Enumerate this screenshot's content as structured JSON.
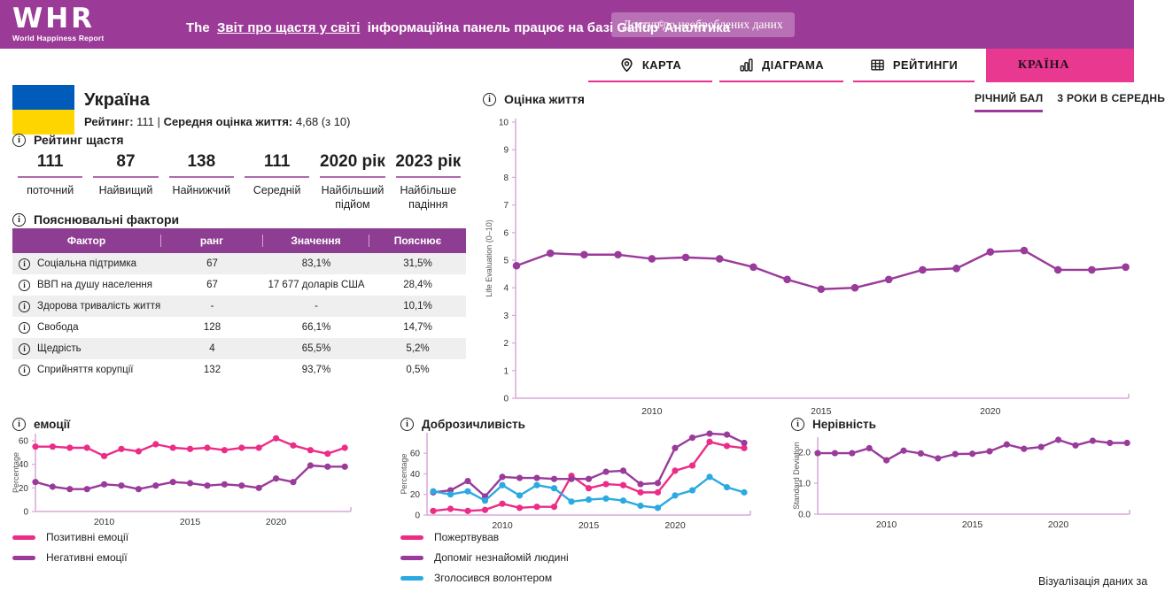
{
  "header": {
    "logo": {
      "acronym": "WHR",
      "name": "World Happiness Report"
    },
    "title": {
      "prefix": "The",
      "link": "Звіт про щастя у світі",
      "middle": "інформаційна панель працює на базі Gallup",
      "superscript": "©",
      "suffix": "Аналітика"
    },
    "raw_data_button": "Доступ до необроблених даних"
  },
  "nav": {
    "tabs": [
      {
        "label": "КАРТА",
        "icon": "map-pin-icon",
        "active": false
      },
      {
        "label": "ДІАГРАМА",
        "icon": "bar-chart-icon",
        "active": false
      },
      {
        "label": "РЕЙТИНГИ",
        "icon": "table-icon",
        "active": false
      },
      {
        "label": "КРАЇНА",
        "icon": "",
        "active": true
      }
    ]
  },
  "country": {
    "name": "Україна",
    "flag_colors": [
      "#005BBB",
      "#FFD500"
    ],
    "rank_label": "Рейтинг:",
    "rank_value": "111",
    "divider": "|",
    "life_label": "Середня оцінка життя:",
    "life_value": "4,68 (з 10)"
  },
  "happiness_rating": {
    "title": "Рейтинг щастя",
    "stats": [
      {
        "value": "111",
        "label": "поточний"
      },
      {
        "value": "87",
        "label": "Найвищий"
      },
      {
        "value": "138",
        "label": "Найнижчий"
      },
      {
        "value": "111",
        "label": "Середній"
      },
      {
        "value": "2020 рік",
        "label": "Найбільший підйом"
      },
      {
        "value": "2023 рік",
        "label": "Найбільше падіння"
      }
    ]
  },
  "factors": {
    "title": "Пояснювальні фактори",
    "columns": [
      "Фактор",
      "ранг",
      "Значення",
      "Пояснює"
    ],
    "rows": [
      {
        "factor": "Соціальна підтримка",
        "rank": "67",
        "value": "83,1%",
        "explains": "31,5%"
      },
      {
        "factor": "ВВП на душу населення",
        "rank": "67",
        "value": "17 677 доларів США",
        "explains": "28,4%"
      },
      {
        "factor": "Здорова тривалість життя",
        "rank": "-",
        "value": "-",
        "explains": "10,1%"
      },
      {
        "factor": "Свобода",
        "rank": "128",
        "value": "66,1%",
        "explains": "14,7%"
      },
      {
        "factor": "Щедрість",
        "rank": "4",
        "value": "65,5%",
        "explains": "5,2%"
      },
      {
        "factor": "Сприйняття корупції",
        "rank": "132",
        "value": "93,7%",
        "explains": "0,5%"
      }
    ]
  },
  "life_chart_tabs": [
    {
      "label": "РІЧНИЙ БАЛ",
      "active": true
    },
    {
      "label": "3 РОКИ В СЕРЕДНЬ",
      "active": false
    }
  ],
  "footer": {
    "attribution": "Візуалізація даних за"
  },
  "colors": {
    "header_bg": "#9B3B97",
    "accent_pink": "#E8308F",
    "table_header": "#8E3E92",
    "axis": "#D9A7D9",
    "series_pink": "#EC2C87",
    "series_purple": "#9A3A9A",
    "series_blue": "#2BAAE2"
  },
  "chart_data": [
    {
      "type": "line",
      "title": "Оцінка життя",
      "ylabel": "Life Evaluation (0–10)",
      "x": [
        2006,
        2007,
        2008,
        2009,
        2010,
        2011,
        2012,
        2013,
        2014,
        2015,
        2016,
        2017,
        2018,
        2019,
        2020,
        2021,
        2022,
        2023,
        2024
      ],
      "x_ticks": [
        2010,
        2015,
        2020
      ],
      "ylim": [
        0,
        10
      ],
      "y_ticks": [
        "0",
        "1",
        "2",
        "3",
        "4",
        "5",
        "6",
        "7",
        "8",
        "9",
        "10"
      ],
      "grid": false,
      "legend_position": "none",
      "series": [
        {
          "name": "Оцінка життя",
          "color": "#9A3A9A",
          "values": [
            4.8,
            5.25,
            5.2,
            5.2,
            5.05,
            5.1,
            5.05,
            4.75,
            4.3,
            3.95,
            4.0,
            4.3,
            4.65,
            4.7,
            5.3,
            5.35,
            4.65,
            4.65,
            4.75
          ]
        }
      ]
    },
    {
      "type": "line",
      "title": "емоції",
      "ylabel": "Percentage",
      "x": [
        2006,
        2007,
        2008,
        2009,
        2010,
        2011,
        2012,
        2013,
        2014,
        2015,
        2016,
        2017,
        2018,
        2019,
        2020,
        2021,
        2022,
        2023,
        2024
      ],
      "x_ticks": [
        2010,
        2015,
        2020
      ],
      "ylim": [
        0,
        66
      ],
      "y_ticks": [
        "0",
        "20",
        "40",
        "60"
      ],
      "grid": false,
      "legend_position": "bottom",
      "series": [
        {
          "name": "Позитивні емоції",
          "color": "#EC2C87",
          "values": [
            55,
            55,
            54,
            54,
            47,
            53,
            51,
            57,
            54,
            53,
            54,
            52,
            54,
            54,
            62,
            56,
            52,
            49,
            54
          ]
        },
        {
          "name": "Негативні емоції",
          "color": "#9A3A9A",
          "values": [
            25,
            21,
            19,
            19,
            23,
            22,
            19,
            22,
            25,
            24,
            22,
            23,
            22,
            20,
            28,
            25,
            39,
            38,
            38
          ]
        }
      ]
    },
    {
      "type": "line",
      "title": "Доброзичливість",
      "ylabel": "Percentage",
      "x": [
        2006,
        2007,
        2008,
        2009,
        2010,
        2011,
        2012,
        2013,
        2014,
        2015,
        2016,
        2017,
        2018,
        2019,
        2020,
        2021,
        2022,
        2023,
        2024
      ],
      "x_ticks": [
        2010,
        2015,
        2020
      ],
      "ylim": [
        0,
        80
      ],
      "y_ticks": [
        "0",
        "20",
        "40",
        "60"
      ],
      "grid": false,
      "legend_position": "bottom",
      "series": [
        {
          "name": "Пожертвував",
          "color": "#EC2C87",
          "values": [
            4,
            6,
            4,
            5,
            11,
            7,
            8,
            8,
            38,
            26,
            30,
            29,
            22,
            22,
            43,
            48,
            71,
            67,
            65
          ]
        },
        {
          "name": "Допоміг незнайомій людині",
          "color": "#9A3A9A",
          "values": [
            22,
            24,
            33,
            18,
            37,
            36,
            36,
            35,
            35,
            35,
            42,
            43,
            30,
            31,
            65,
            75,
            79,
            78,
            70
          ]
        },
        {
          "name": "Зголосився волонтером",
          "color": "#2BAAE2",
          "values": [
            23,
            20,
            23,
            14,
            29,
            19,
            29,
            26,
            13,
            15,
            16,
            14,
            9,
            7,
            19,
            24,
            37,
            27,
            22
          ]
        }
      ]
    },
    {
      "type": "line",
      "title": "Нерівність",
      "ylabel": "Standard Deviation",
      "x": [
        2006,
        2007,
        2008,
        2009,
        2010,
        2011,
        2012,
        2013,
        2014,
        2015,
        2016,
        2017,
        2018,
        2019,
        2020,
        2021,
        2022,
        2023,
        2024
      ],
      "x_ticks": [
        2010,
        2015,
        2020
      ],
      "ylim": [
        0,
        2.6
      ],
      "y_ticks": [
        "0.0",
        "1.0",
        "2.0"
      ],
      "grid": false,
      "legend_position": "none",
      "series": [
        {
          "name": "Нерівність",
          "color": "#9A3A9A",
          "values": [
            1.97,
            1.97,
            1.97,
            2.13,
            1.74,
            2.05,
            1.96,
            1.8,
            1.94,
            1.95,
            2.03,
            2.25,
            2.11,
            2.17,
            2.4,
            2.22,
            2.37,
            2.3,
            2.3
          ]
        }
      ]
    }
  ]
}
